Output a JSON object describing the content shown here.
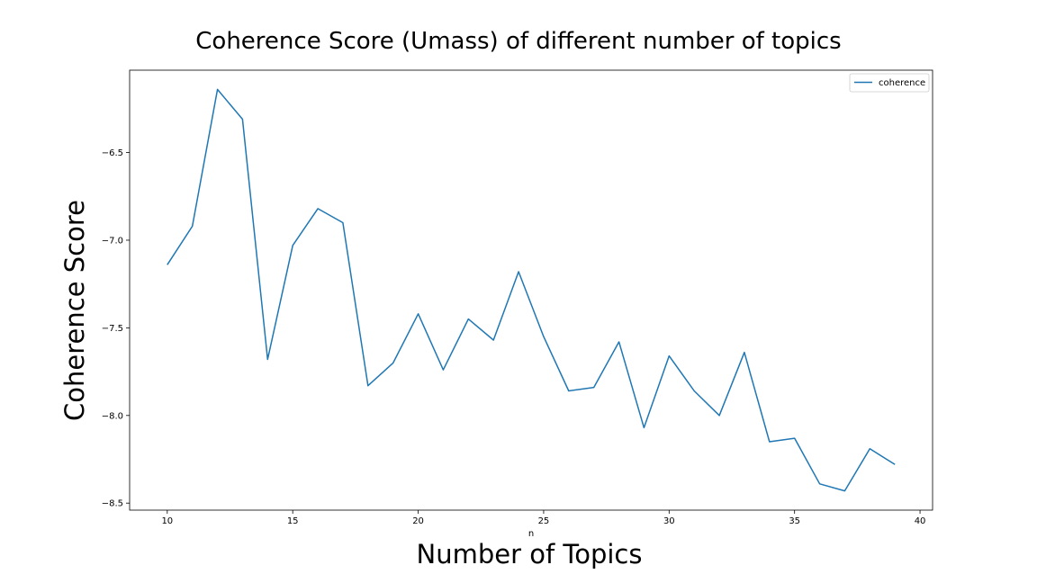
{
  "chart_data": {
    "type": "line",
    "title": "Coherence Score (Umass) of different number of topics",
    "xlabel": "Number of Topics",
    "x_index_label": "n",
    "ylabel": "Coherence Score",
    "xlim": [
      8.5,
      40.5
    ],
    "ylim": [
      -8.54,
      -6.03
    ],
    "xticks": [
      10,
      15,
      20,
      25,
      30,
      35,
      40
    ],
    "yticks": [
      -6.5,
      -7.0,
      -7.5,
      -8.0,
      -8.5
    ],
    "grid": false,
    "legend_position": "top-right",
    "series": [
      {
        "name": "coherence",
        "color": "#1f77b4",
        "x": [
          10,
          11,
          12,
          13,
          14,
          15,
          16,
          17,
          18,
          19,
          20,
          21,
          22,
          23,
          24,
          25,
          26,
          27,
          28,
          29,
          30,
          31,
          32,
          33,
          34,
          35,
          36,
          37,
          38,
          39
        ],
        "y": [
          -7.14,
          -6.92,
          -6.14,
          -6.31,
          -7.68,
          -7.03,
          -6.82,
          -6.9,
          -7.83,
          -7.7,
          -7.42,
          -7.74,
          -7.45,
          -7.57,
          -7.18,
          -7.55,
          -7.86,
          -7.84,
          -7.58,
          -8.07,
          -7.66,
          -7.86,
          -8.0,
          -7.64,
          -8.15,
          -8.13,
          -8.39,
          -8.43,
          -8.19,
          -8.28
        ]
      }
    ]
  }
}
